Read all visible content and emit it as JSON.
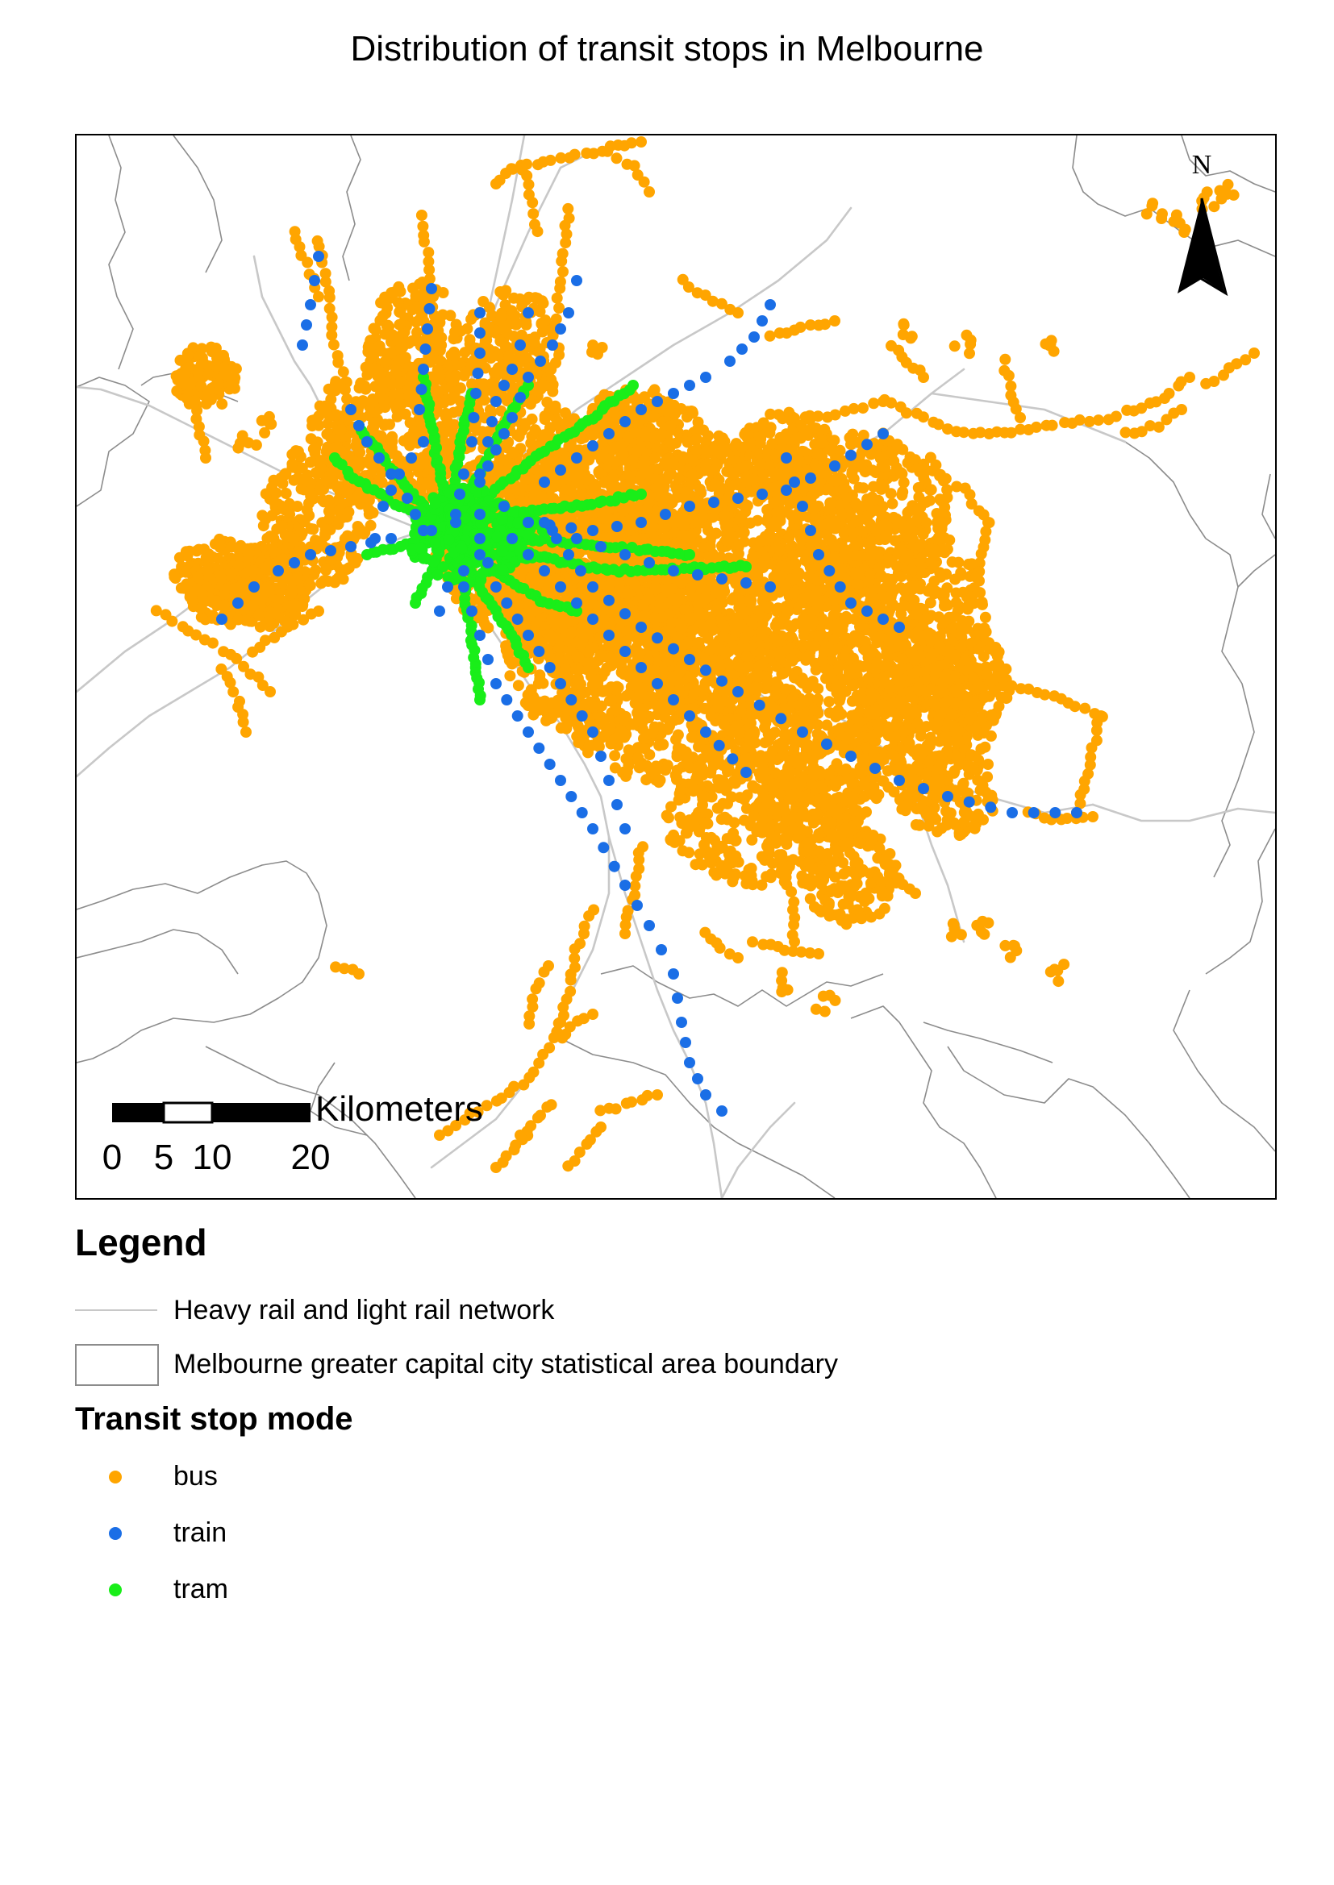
{
  "title": "Distribution of transit stops in Melbourne",
  "map": {
    "north_label": "N",
    "scale_bar": {
      "unit_label": "Kilometers",
      "ticks": [
        "0",
        "5",
        "10",
        "20"
      ]
    },
    "colors": {
      "bus": "#ffa500",
      "train": "#1a6ee6",
      "tram": "#19ee19",
      "rail_network": "#c8c8c8",
      "boundary": "#8c8c8c"
    }
  },
  "legend": {
    "heading": "Legend",
    "items": [
      {
        "label": "Heavy rail and light rail network",
        "symbol": "line",
        "color": "#c8c8c8"
      },
      {
        "label": "Melbourne greater capital city statistical area boundary",
        "symbol": "box",
        "color": "#8c8c8c"
      }
    ],
    "mode_heading": "Transit stop mode",
    "modes": [
      {
        "label": "bus",
        "color": "#ffa500"
      },
      {
        "label": "train",
        "color": "#1a6ee6"
      },
      {
        "label": "tram",
        "color": "#19ee19"
      }
    ]
  }
}
